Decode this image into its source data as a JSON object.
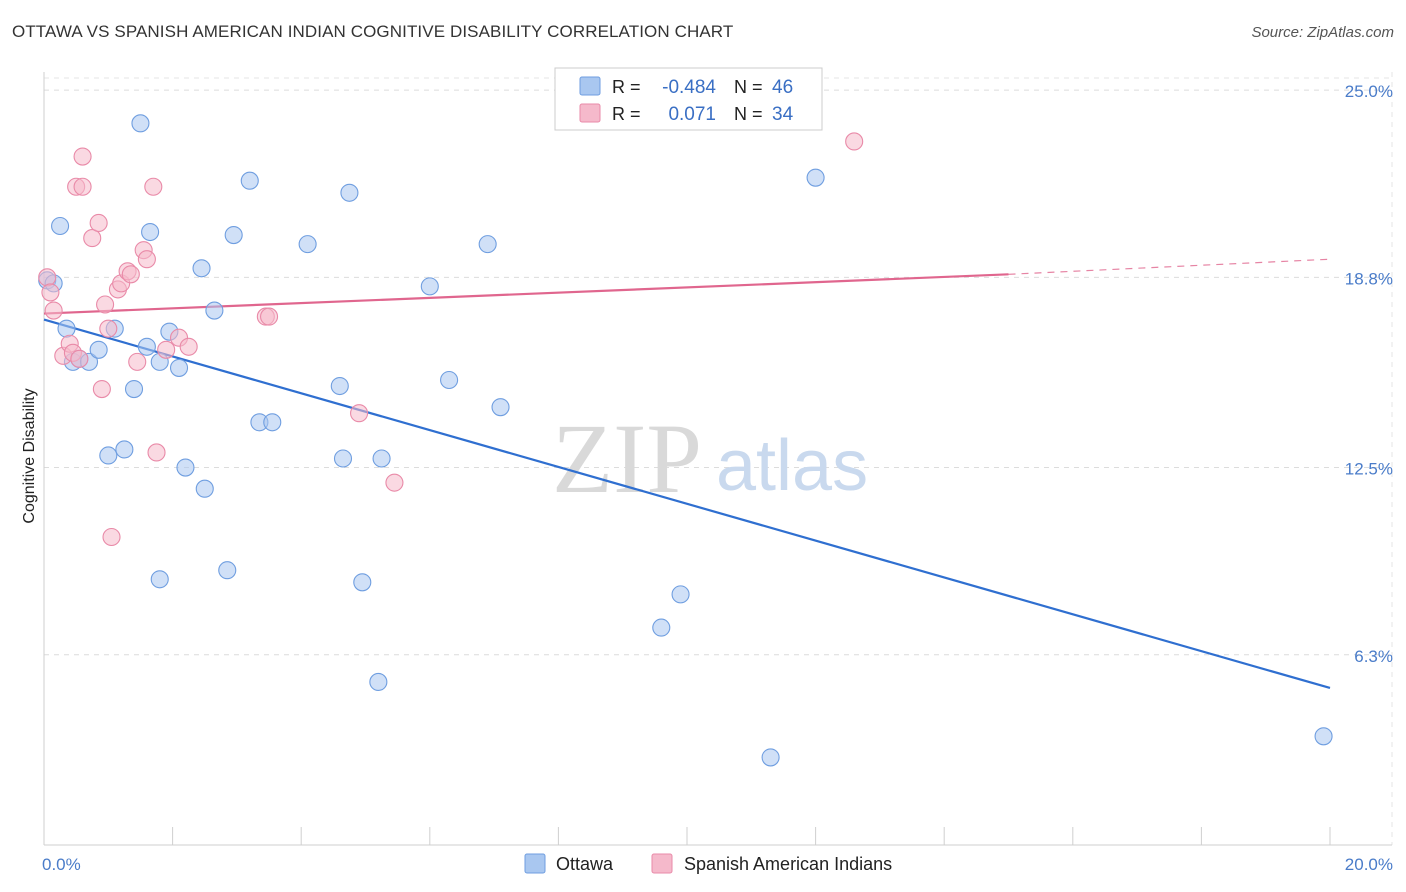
{
  "header": {
    "title": "OTTAWA VS SPANISH AMERICAN INDIAN COGNITIVE DISABILITY CORRELATION CHART",
    "source": "Source: ZipAtlas.com"
  },
  "watermark": {
    "zip": "ZIP",
    "atlas": "atlas"
  },
  "legend": {
    "rows": [
      {
        "r_label": "R =",
        "r_value": "-0.484",
        "n_label": "N =",
        "n_value": "46",
        "color": "#a9c7f0"
      },
      {
        "r_label": "R =",
        "r_value": "0.071",
        "n_label": "N =",
        "n_value": "34",
        "color": "#f5b9cb"
      }
    ]
  },
  "bottom_legend": [
    {
      "label": "Ottawa",
      "color": "#a9c7f0"
    },
    {
      "label": "Spanish American Indians",
      "color": "#f5b9cb"
    }
  ],
  "chart_data": {
    "type": "scatter",
    "ylabel": "Cognitive Disability",
    "xlim": [
      0,
      20
    ],
    "ylim": [
      0,
      25.6
    ],
    "y_ticks": [
      {
        "value": 6.3,
        "label": "6.3%"
      },
      {
        "value": 12.5,
        "label": "12.5%"
      },
      {
        "value": 18.8,
        "label": "18.8%"
      },
      {
        "value": 25.0,
        "label": "25.0%"
      }
    ],
    "x_tick_labels": [
      {
        "value": 0,
        "label": "0.0%"
      },
      {
        "value": 20,
        "label": "20.0%"
      }
    ],
    "x_minor_ticks": [
      0,
      2,
      4,
      6,
      8,
      10,
      12,
      14,
      16,
      18,
      20
    ],
    "grid": true,
    "series": [
      {
        "name": "Ottawa",
        "color": "#6f9ee0",
        "fill": "#a9c7f0",
        "trend": {
          "x0": 0,
          "y0": 17.4,
          "x1": 20,
          "y1": 5.2,
          "color": "#2f6fd0"
        },
        "points": [
          [
            0.05,
            18.7
          ],
          [
            0.15,
            18.6
          ],
          [
            0.25,
            20.5
          ],
          [
            0.35,
            17.1
          ],
          [
            0.45,
            16.0
          ],
          [
            0.55,
            16.1
          ],
          [
            0.7,
            16.0
          ],
          [
            0.85,
            16.4
          ],
          [
            1.0,
            12.9
          ],
          [
            1.1,
            17.1
          ],
          [
            1.25,
            13.1
          ],
          [
            1.4,
            15.1
          ],
          [
            1.5,
            23.9
          ],
          [
            1.6,
            16.5
          ],
          [
            1.65,
            20.3
          ],
          [
            1.8,
            16.0
          ],
          [
            1.8,
            8.8
          ],
          [
            1.95,
            17.0
          ],
          [
            2.1,
            15.8
          ],
          [
            2.2,
            12.5
          ],
          [
            2.45,
            19.1
          ],
          [
            2.5,
            11.8
          ],
          [
            2.65,
            17.7
          ],
          [
            2.85,
            9.1
          ],
          [
            2.95,
            20.2
          ],
          [
            3.2,
            22.0
          ],
          [
            3.35,
            14.0
          ],
          [
            3.55,
            14.0
          ],
          [
            4.1,
            19.9
          ],
          [
            4.6,
            15.2
          ],
          [
            4.65,
            12.8
          ],
          [
            4.75,
            21.6
          ],
          [
            4.95,
            8.7
          ],
          [
            5.2,
            5.4
          ],
          [
            5.25,
            12.8
          ],
          [
            6.0,
            18.5
          ],
          [
            6.3,
            15.4
          ],
          [
            6.9,
            19.9
          ],
          [
            7.1,
            14.5
          ],
          [
            9.6,
            7.2
          ],
          [
            9.9,
            8.3
          ],
          [
            11.3,
            2.9
          ],
          [
            12.0,
            22.1
          ],
          [
            19.9,
            3.6
          ]
        ]
      },
      {
        "name": "Spanish American Indians",
        "color": "#e98aa8",
        "fill": "#f5b9cb",
        "trend": {
          "x0": 0,
          "y0": 17.6,
          "x1": 15.0,
          "y1": 18.9,
          "color": "#e0668e",
          "dash_to_x": 20,
          "dash_to_y": 19.4
        },
        "points": [
          [
            0.05,
            18.8
          ],
          [
            0.1,
            18.3
          ],
          [
            0.15,
            17.7
          ],
          [
            0.3,
            16.2
          ],
          [
            0.4,
            16.6
          ],
          [
            0.45,
            16.3
          ],
          [
            0.5,
            21.8
          ],
          [
            0.55,
            16.1
          ],
          [
            0.6,
            21.8
          ],
          [
            0.6,
            22.8
          ],
          [
            0.75,
            20.1
          ],
          [
            0.85,
            20.6
          ],
          [
            0.9,
            15.1
          ],
          [
            0.95,
            17.9
          ],
          [
            1.0,
            17.1
          ],
          [
            1.05,
            10.2
          ],
          [
            1.15,
            18.4
          ],
          [
            1.2,
            18.6
          ],
          [
            1.3,
            19.0
          ],
          [
            1.35,
            18.9
          ],
          [
            1.45,
            16.0
          ],
          [
            1.55,
            19.7
          ],
          [
            1.6,
            19.4
          ],
          [
            1.7,
            21.8
          ],
          [
            1.75,
            13.0
          ],
          [
            1.9,
            16.4
          ],
          [
            2.1,
            16.8
          ],
          [
            2.25,
            16.5
          ],
          [
            3.45,
            17.5
          ],
          [
            3.5,
            17.5
          ],
          [
            4.9,
            14.3
          ],
          [
            5.45,
            12.0
          ],
          [
            12.6,
            23.3
          ]
        ]
      }
    ]
  }
}
